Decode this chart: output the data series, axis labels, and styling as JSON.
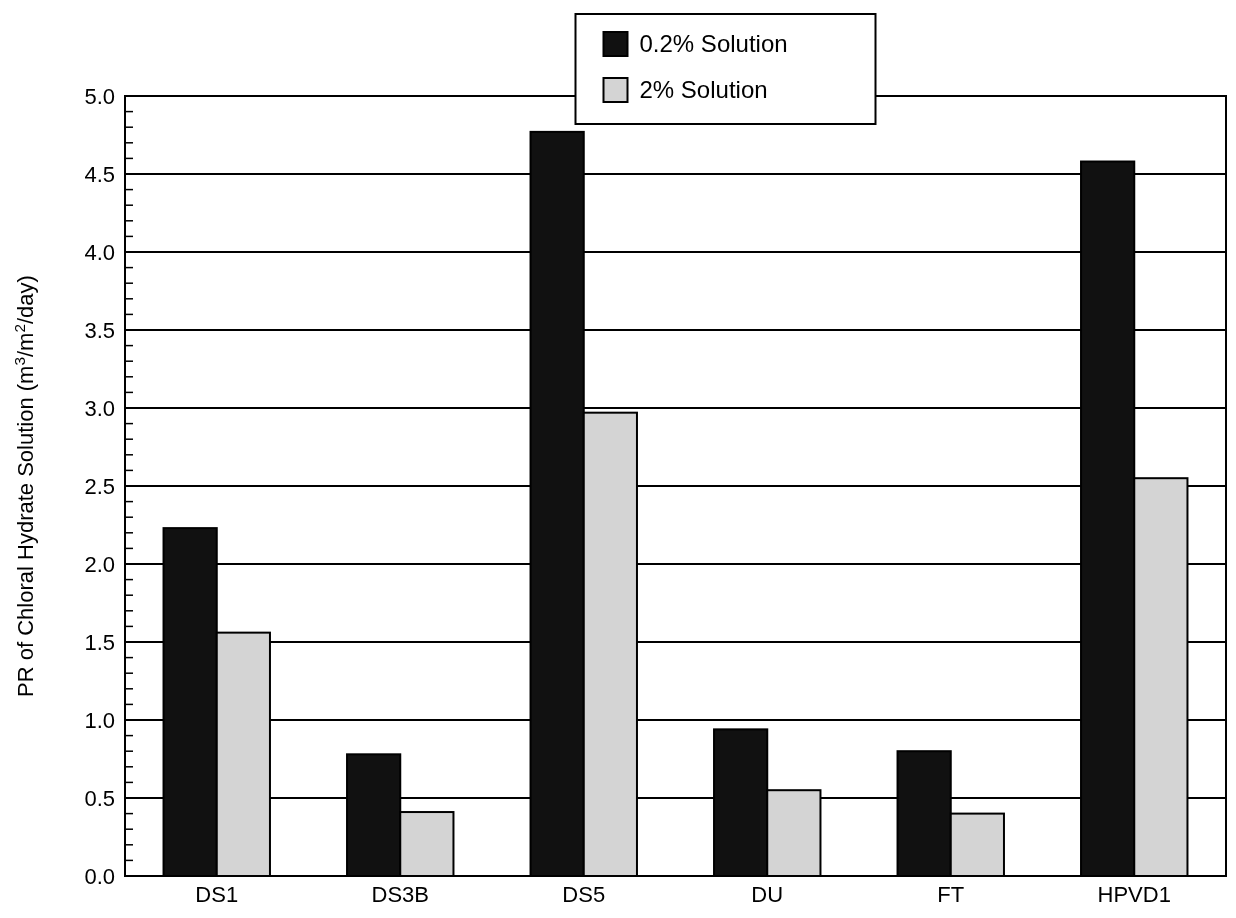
{
  "chart_data": {
    "type": "bar",
    "ylabel": "PR of Chloral Hydrate Solution (m$^{3}$/m$^{2}$/day)",
    "categories": [
      "DS1",
      "DS3B",
      "DS5",
      "DU",
      "FT",
      "HPVD1"
    ],
    "series": [
      {
        "name": "0.2% Solution",
        "color": "#111111",
        "values": [
          2.23,
          0.78,
          4.77,
          0.94,
          0.8,
          4.58
        ]
      },
      {
        "name": "2% Solution",
        "color": "#d4d4d4",
        "values": [
          1.56,
          0.41,
          2.97,
          0.55,
          0.4,
          2.55
        ]
      }
    ],
    "ylim": [
      0,
      5
    ],
    "yticks": [
      {
        "value": 0,
        "label": "0.0"
      },
      0.5,
      {
        "value": 1,
        "label": "1.0"
      },
      1.5,
      {
        "value": 2,
        "label": "2.0"
      },
      2.5,
      {
        "value": 3,
        "label": "3.0"
      },
      3.5,
      {
        "value": 4,
        "label": "4.0"
      },
      4.5,
      {
        "value": 5,
        "label": "5.0"
      }
    ],
    "grid": "y",
    "legend": "top"
  }
}
